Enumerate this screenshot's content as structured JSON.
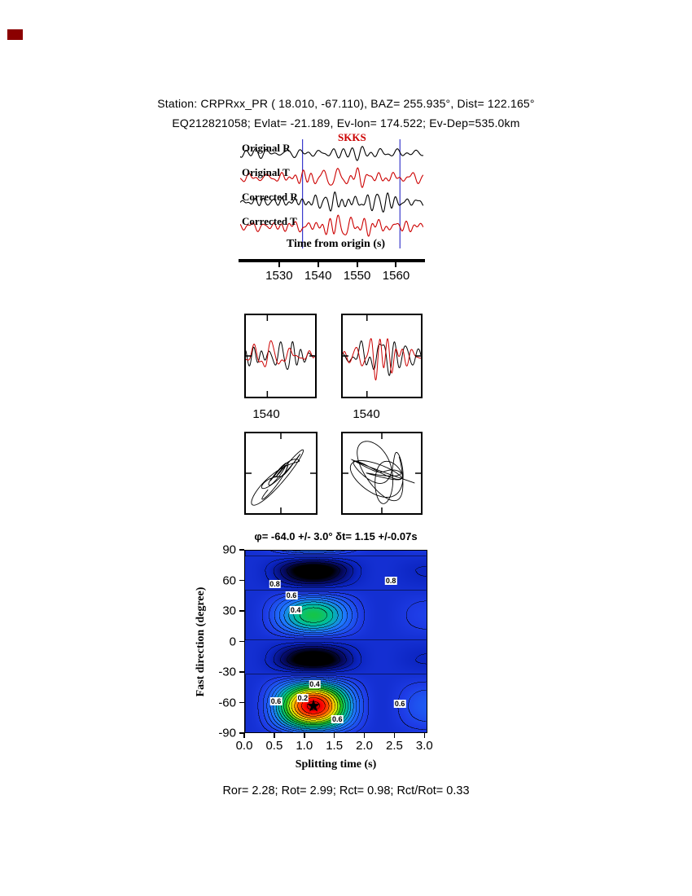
{
  "page": {
    "bg": "#ffffff"
  },
  "corner_mark": {
    "color": "#8b0000"
  },
  "header": {
    "line1": "Station: CRPRxx_PR (  18.010,  -67.110), BAZ=  255.935°, Dist=  122.165°",
    "line2": "EQ212821058; Evlat= -21.189, Ev-lon= 174.522; Ev-Dep=535.0km"
  },
  "seismogram": {
    "phase_label": "SKKS",
    "phase_color": "#cc0000",
    "trace_labels": [
      "Original R",
      "Original T",
      "Corrected R",
      "Corrected T"
    ],
    "trace_colors": [
      "#000000",
      "#cc0000",
      "#000000",
      "#cc0000"
    ],
    "window_lines": [
      1536,
      1561
    ],
    "window_line_color": "#3b3bcc",
    "time_range": [
      1520,
      1567
    ],
    "axis_label": "Time from origin (s)",
    "xticks": [
      "1530",
      "1540",
      "1550",
      "1560"
    ],
    "xtick_values": [
      1530,
      1540,
      1550,
      1560
    ]
  },
  "zoom_panels": {
    "left_xtick": "1540",
    "right_xtick": "1540",
    "xtick_value": 1540,
    "trace_colors": [
      "#000000",
      "#cc0000"
    ]
  },
  "particle_panels": {
    "curve_color": "#000000"
  },
  "contour": {
    "title": "φ= -64.0 +/- 3.0°  δt= 1.15 +/-0.07s",
    "xlabel": "Splitting time (s)",
    "ylabel": "Fast direction (degree)",
    "xticks": [
      "0.0",
      "0.5",
      "1.0",
      "1.5",
      "2.0",
      "2.5",
      "3.0"
    ],
    "xtick_values": [
      0,
      0.5,
      1,
      1.5,
      2,
      2.5,
      3
    ],
    "yticks": [
      "90",
      "60",
      "30",
      "0",
      "-30",
      "-60",
      "-90"
    ],
    "ytick_values": [
      90,
      60,
      30,
      0,
      -30,
      -60,
      -90
    ],
    "xlim": [
      0,
      3.05
    ],
    "ylim": [
      -90,
      90
    ],
    "best_fit": {
      "phi_deg": -64.0,
      "phi_err_deg": 3.0,
      "dt_s": 1.15,
      "dt_err_s": 0.07
    },
    "star_marker": "★",
    "labels": [
      {
        "text": "0.8",
        "dt": 0.5,
        "phi": 57
      },
      {
        "text": "0.6",
        "dt": 0.78,
        "phi": 46
      },
      {
        "text": "0.4",
        "dt": 0.85,
        "phi": 31
      },
      {
        "text": "0.8",
        "dt": 2.45,
        "phi": 60
      },
      {
        "text": "0.6",
        "dt": 0.52,
        "phi": -59
      },
      {
        "text": "0.2",
        "dt": 0.97,
        "phi": -56
      },
      {
        "text": "0.4",
        "dt": 1.17,
        "phi": -42
      },
      {
        "text": "0.6",
        "dt": 1.55,
        "phi": -77
      },
      {
        "text": "0.6",
        "dt": 2.6,
        "phi": -62
      }
    ]
  },
  "footer": {
    "text": "Ror= 2.28; Rot= 2.99; Rct= 0.98; Rct/Rot= 0.33",
    "Ror": 2.28,
    "Rot": 2.99,
    "Rct": 0.98,
    "Rct_over_Rot": 0.33
  },
  "chart_data": [
    {
      "type": "line",
      "name": "seismogram-traces",
      "xlabel": "Time from origin (s)",
      "x_range": [
        1520,
        1567
      ],
      "xticks": [
        1530,
        1540,
        1550,
        1560
      ],
      "series": [
        {
          "name": "Original R",
          "color": "#000000"
        },
        {
          "name": "Original T",
          "color": "#cc0000"
        },
        {
          "name": "Corrected R",
          "color": "#000000"
        },
        {
          "name": "Corrected T",
          "color": "#cc0000"
        }
      ],
      "annotations": {
        "phase": "SKKS",
        "window_lines_s": [
          1536,
          1561
        ]
      },
      "note": "band-limited seismic waveforms, amplitudes unlabeled"
    },
    {
      "type": "line",
      "name": "window-zoom-original",
      "xticks": [
        1540
      ],
      "series": [
        "R",
        "T"
      ]
    },
    {
      "type": "line",
      "name": "window-zoom-corrected",
      "xticks": [
        1540
      ],
      "series": [
        "R",
        "T"
      ]
    },
    {
      "type": "scatter",
      "name": "particle-motion-original",
      "note": "hodogram, elongated diagonal"
    },
    {
      "type": "scatter",
      "name": "particle-motion-corrected",
      "note": "hodogram, compact"
    },
    {
      "type": "heatmap",
      "name": "splitting-error-surface",
      "title": "φ= -64.0 +/- 3.0°  δt= 1.15 +/-0.07s",
      "xlabel": "Splitting time (s)",
      "ylabel": "Fast direction (degree)",
      "xlim": [
        0,
        3.05
      ],
      "ylim": [
        -90,
        90
      ],
      "xticks": [
        0,
        0.5,
        1,
        1.5,
        2,
        2.5,
        3
      ],
      "yticks": [
        90,
        60,
        30,
        0,
        -30,
        -60,
        -90
      ],
      "contour_label_values": [
        0.2,
        0.4,
        0.6,
        0.8
      ],
      "minimum": {
        "dt_s": 1.15,
        "phi_deg": -64,
        "marker": "star"
      },
      "secondary_minimum": {
        "dt_s": 0.85,
        "phi_deg": 30
      }
    }
  ]
}
